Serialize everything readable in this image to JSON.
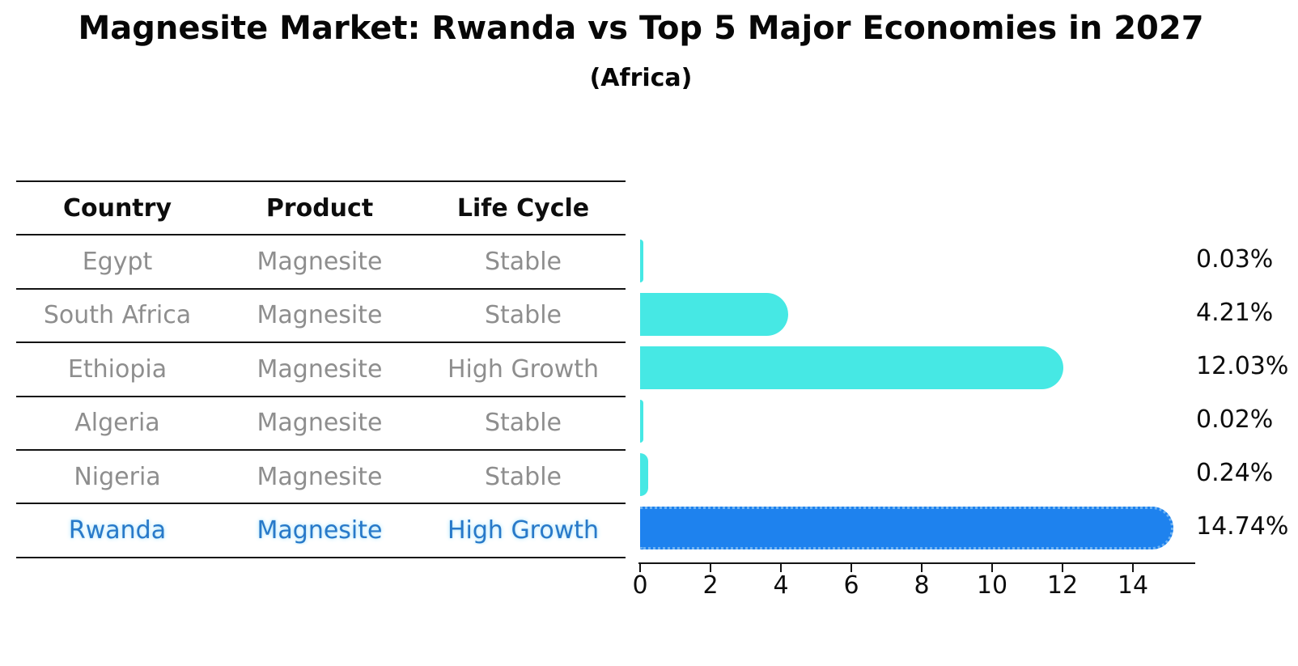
{
  "title": "Magnesite Market: Rwanda vs Top 5 Major Economies in 2027",
  "subtitle": "(Africa)",
  "table": {
    "headers": [
      "Country",
      "Product",
      "Life Cycle"
    ],
    "rows": [
      {
        "country": "Egypt",
        "product": "Magnesite",
        "life_cycle": "Stable",
        "highlight": false
      },
      {
        "country": "South Africa",
        "product": "Magnesite",
        "life_cycle": "Stable",
        "highlight": false
      },
      {
        "country": "Ethiopia",
        "product": "Magnesite",
        "life_cycle": "High Growth",
        "highlight": false
      },
      {
        "country": "Algeria",
        "product": "Magnesite",
        "life_cycle": "Stable",
        "highlight": false
      },
      {
        "country": "Nigeria",
        "product": "Magnesite",
        "life_cycle": "Stable",
        "highlight": false
      },
      {
        "country": "Rwanda",
        "product": "Magnesite",
        "life_cycle": "High Growth",
        "highlight": true
      }
    ]
  },
  "chart_data": {
    "type": "bar",
    "orientation": "horizontal",
    "title": "Magnesite Market: Rwanda vs Top 5 Major Economies in 2027",
    "subtitle": "(Africa)",
    "categories": [
      "Egypt",
      "South Africa",
      "Ethiopia",
      "Algeria",
      "Nigeria",
      "Rwanda"
    ],
    "values": [
      0.03,
      4.21,
      12.03,
      0.02,
      0.24,
      14.74
    ],
    "value_labels": [
      "0.03%",
      "4.21%",
      "12.03%",
      "0.02%",
      "0.24%",
      "14.74%"
    ],
    "unit": "%",
    "xlabel": "",
    "ylabel": "",
    "x_ticks": [
      0,
      2,
      4,
      6,
      8,
      10,
      12,
      14
    ],
    "xlim": [
      0,
      15.6
    ],
    "grid": false,
    "legend": false,
    "highlight_index": 5,
    "bar_color": "#46e8e4",
    "highlight_color": "#1e82ee",
    "highlight_edge_color": "#6fb3f3"
  },
  "colors": {
    "background": "#ffffff",
    "text": "#0d0d0d",
    "muted_text": "#8e8e8e",
    "highlight_text": "#2879c9",
    "line": "#141414"
  }
}
